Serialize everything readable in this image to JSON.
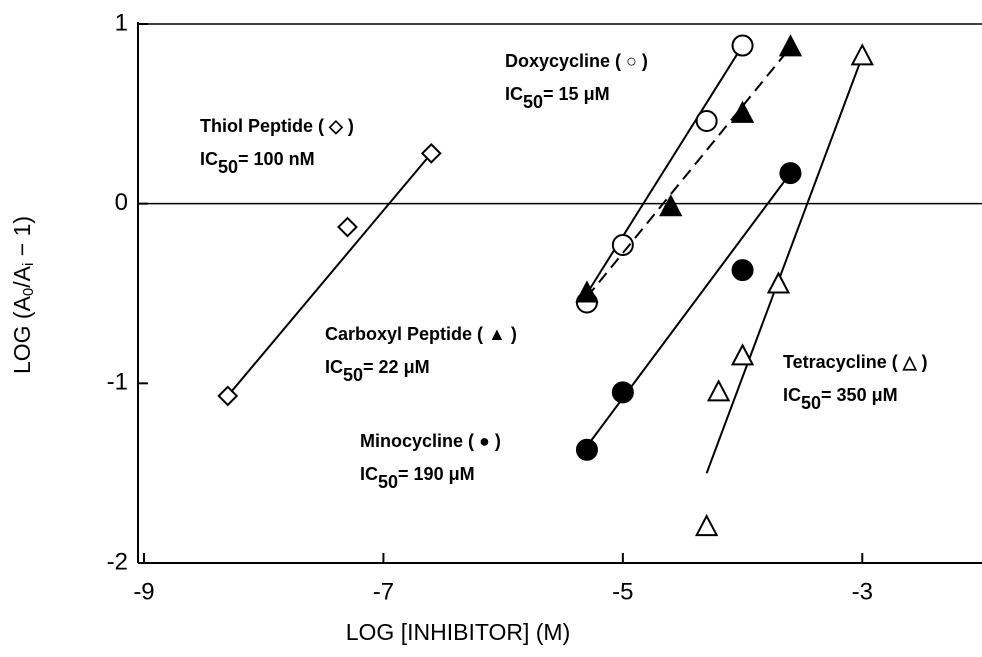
{
  "chart_data": {
    "type": "scatter",
    "x_label": "LOG [INHIBITOR] (M)",
    "y_label": [
      "LOG (A",
      "0",
      "/A",
      "i",
      " − 1)"
    ],
    "xlim": [
      -9.05,
      -2
    ],
    "ylim": [
      -2,
      1
    ],
    "xticks": [
      -9,
      -7,
      -5,
      -3
    ],
    "yticks": [
      -2,
      -1,
      0,
      1
    ],
    "reference_lines": [
      0,
      1
    ],
    "series": [
      {
        "name": "Thiol Peptide ( ◇ )",
        "ic50": [
          "IC",
          "50",
          "= 100 nM"
        ],
        "marker": "diamond",
        "filled": false,
        "dashed": false,
        "color": "#000000",
        "x": [
          -8.3,
          -7.3,
          -6.6
        ],
        "y": [
          -1.07,
          -0.13,
          0.28
        ],
        "fit_x": [
          -8.3,
          -6.6
        ],
        "fit_y": [
          -1.07,
          0.28
        ]
      },
      {
        "name": "Doxycycline ( ○ )",
        "ic50": [
          "IC",
          "50",
          "= 15 μM"
        ],
        "marker": "circle",
        "filled": false,
        "dashed": false,
        "color": "#000000",
        "x": [
          -5.3,
          -5.0,
          -4.3,
          -4.0
        ],
        "y": [
          -0.55,
          -0.23,
          0.46,
          0.88
        ],
        "fit_x": [
          -5.3,
          -4.0
        ],
        "fit_y": [
          -0.5,
          0.88
        ]
      },
      {
        "name": "Carboxyl Peptide ( ▲ )",
        "ic50": [
          "IC",
          "50",
          "= 22 μM"
        ],
        "marker": "triangle",
        "filled": true,
        "dashed": true,
        "color": "#000000",
        "x": [
          -5.3,
          -4.6,
          -4.0,
          -3.6
        ],
        "y": [
          -0.5,
          -0.02,
          0.5,
          0.87
        ],
        "fit_x": [
          -5.3,
          -3.6
        ],
        "fit_y": [
          -0.52,
          0.87
        ]
      },
      {
        "name": "Minocycline  ( ● )",
        "ic50": [
          "IC",
          "50",
          "= 190 μM"
        ],
        "marker": "circle",
        "filled": true,
        "dashed": false,
        "color": "#000000",
        "x": [
          -5.3,
          -5.0,
          -4.0,
          -3.6
        ],
        "y": [
          -1.37,
          -1.05,
          -0.37,
          0.17
        ],
        "fit_x": [
          -5.3,
          -3.6
        ],
        "fit_y": [
          -1.35,
          0.17
        ]
      },
      {
        "name": "Tetracycline ( △ )",
        "ic50": [
          "IC",
          "50",
          "= 350 μM"
        ],
        "marker": "triangle",
        "filled": false,
        "dashed": false,
        "color": "#000000",
        "x": [
          -4.3,
          -4.2,
          -4.0,
          -3.7,
          -3.0
        ],
        "y": [
          -1.8,
          -1.05,
          -0.85,
          -0.45,
          0.82
        ],
        "fit_x": [
          -4.3,
          -3.0
        ],
        "fit_y": [
          -1.5,
          0.82
        ]
      }
    ]
  }
}
